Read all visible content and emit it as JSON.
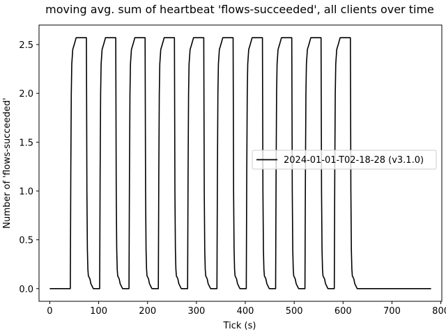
{
  "chart_data": {
    "type": "line",
    "title": "moving avg. sum of heartbeat 'flows-succeeded', all clients over time",
    "xlabel": "Tick (s)",
    "ylabel": "Number of 'flows-succeeded'",
    "xlim": [
      -22,
      802
    ],
    "ylim": [
      -0.13,
      2.7
    ],
    "xticks": [
      0,
      100,
      200,
      300,
      400,
      500,
      600,
      700,
      800
    ],
    "yticks": [
      0.0,
      0.5,
      1.0,
      1.5,
      2.0,
      2.5
    ],
    "xtick_labels": [
      "0",
      "100",
      "200",
      "300",
      "400",
      "500",
      "600",
      "700",
      "800"
    ],
    "ytick_labels": [
      "0.0",
      "0.5",
      "1.0",
      "1.5",
      "2.0",
      "2.5"
    ],
    "grid": false,
    "legend_position": "center-right",
    "series": [
      {
        "name": "2024-01-01-T02-18-28 (v3.1.0)",
        "color": "#000000",
        "cycle": {
          "period": 60,
          "count": 10,
          "first_rise": 42,
          "peak": 2.57,
          "rise_profile": [
            [
              0,
              0.0
            ],
            [
              1,
              1.2
            ],
            [
              2,
              2.0
            ],
            [
              3,
              2.3
            ],
            [
              5,
              2.45
            ],
            [
              8,
              2.5
            ],
            [
              12,
              2.57
            ]
          ],
          "high_until": 33,
          "fall_profile": [
            [
              0,
              2.57
            ],
            [
              1,
              1.0
            ],
            [
              2,
              0.4
            ],
            [
              3,
              0.2
            ],
            [
              4,
              0.13
            ],
            [
              7,
              0.1
            ],
            [
              9,
              0.05
            ],
            [
              12,
              0.02
            ],
            [
              14,
              0.0
            ]
          ]
        },
        "x_start": 0,
        "x_end": 780
      }
    ]
  }
}
